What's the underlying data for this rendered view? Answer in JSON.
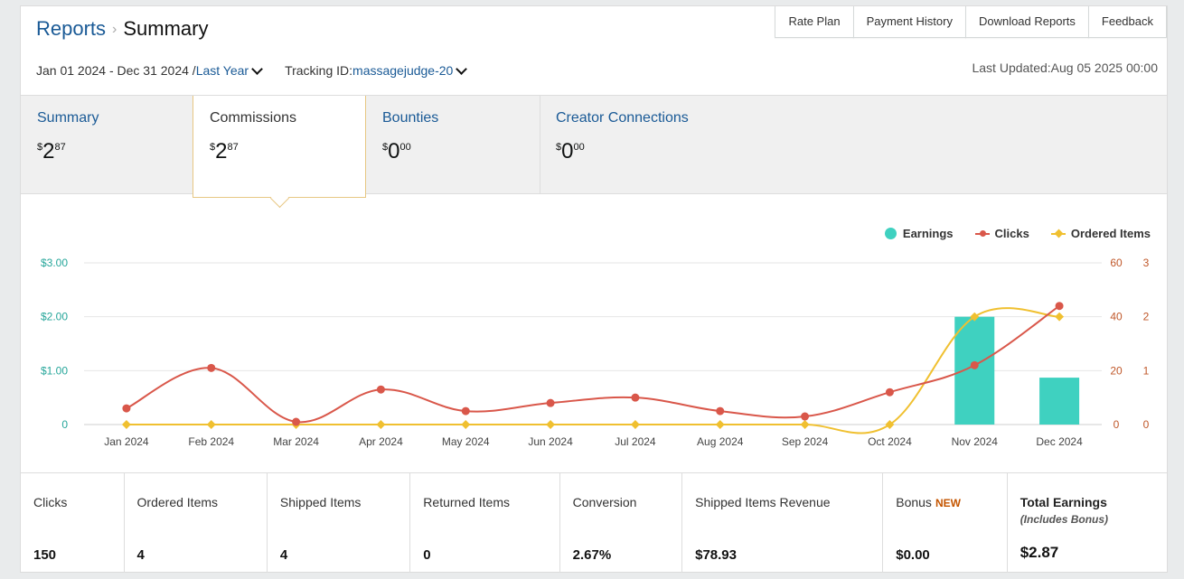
{
  "header": {
    "breadcrumb_root": "Reports",
    "breadcrumb_sep": "›",
    "breadcrumb_current": "Summary",
    "buttons": [
      "Rate Plan",
      "Payment History",
      "Download Reports",
      "Feedback"
    ],
    "date_range": "Jan 01 2024 - Dec 31 2024 /",
    "date_preset": "Last Year",
    "tracking_label": "Tracking ID:",
    "tracking_id": "massagejudge-20",
    "last_updated": "Last Updated:Aug 05 2025 00:00"
  },
  "tabs": [
    {
      "label": "Summary",
      "currency": "$",
      "dollars": "2",
      "cents": "87"
    },
    {
      "label": "Commissions",
      "currency": "$",
      "dollars": "2",
      "cents": "87"
    },
    {
      "label": "Bounties",
      "currency": "$",
      "dollars": "0",
      "cents": "00"
    },
    {
      "label": "Creator Connections",
      "currency": "$",
      "dollars": "0",
      "cents": "00"
    }
  ],
  "legend": {
    "earnings": "Earnings",
    "clicks": "Clicks",
    "ordered": "Ordered Items"
  },
  "colors": {
    "earnings": "#3fd1c0",
    "clicks": "#d9574a",
    "ordered": "#f0c030",
    "left_axis": "#26a69a",
    "right_axis": "#c0582a"
  },
  "chart_data": {
    "type": "bar",
    "categories": [
      "Jan 2024",
      "Feb 2024",
      "Mar 2024",
      "Apr 2024",
      "May 2024",
      "Jun 2024",
      "Jul 2024",
      "Aug 2024",
      "Sep 2024",
      "Oct 2024",
      "Nov 2024",
      "Dec 2024"
    ],
    "series": [
      {
        "name": "Earnings",
        "type": "bar",
        "axis": "left",
        "values": [
          0,
          0,
          0,
          0,
          0,
          0,
          0,
          0,
          0,
          0,
          2.0,
          0.87
        ]
      },
      {
        "name": "Clicks",
        "type": "line",
        "axis": "right1",
        "values": [
          6,
          21,
          1,
          13,
          5,
          8,
          10,
          5,
          3,
          12,
          22,
          44
        ]
      },
      {
        "name": "Ordered Items",
        "type": "line",
        "axis": "right2",
        "values": [
          0,
          0,
          0,
          0,
          0,
          0,
          0,
          0,
          0,
          0,
          2,
          2
        ]
      }
    ],
    "left_ticks": [
      "0",
      "$1.00",
      "$2.00",
      "$3.00"
    ],
    "left_range": [
      0,
      3
    ],
    "right1_ticks": [
      "0",
      "20",
      "40",
      "60"
    ],
    "right1_range": [
      0,
      60
    ],
    "right2_ticks": [
      "0",
      "1",
      "2",
      "3"
    ],
    "right2_range": [
      0,
      3
    ],
    "legend_position": "top-right",
    "grid": true
  },
  "stats": [
    {
      "label": "Clicks",
      "value": "150"
    },
    {
      "label": "Ordered Items",
      "value": "4"
    },
    {
      "label": "Shipped Items",
      "value": "4"
    },
    {
      "label": "Returned Items",
      "value": "0"
    },
    {
      "label": "Conversion",
      "value": "2.67%"
    },
    {
      "label": "Shipped Items Revenue",
      "value": "$78.93"
    },
    {
      "label": "Bonus",
      "badge": "NEW",
      "value": "$0.00"
    },
    {
      "label": "Total Earnings",
      "note": "(Includes Bonus)",
      "value": "$2.87"
    }
  ]
}
